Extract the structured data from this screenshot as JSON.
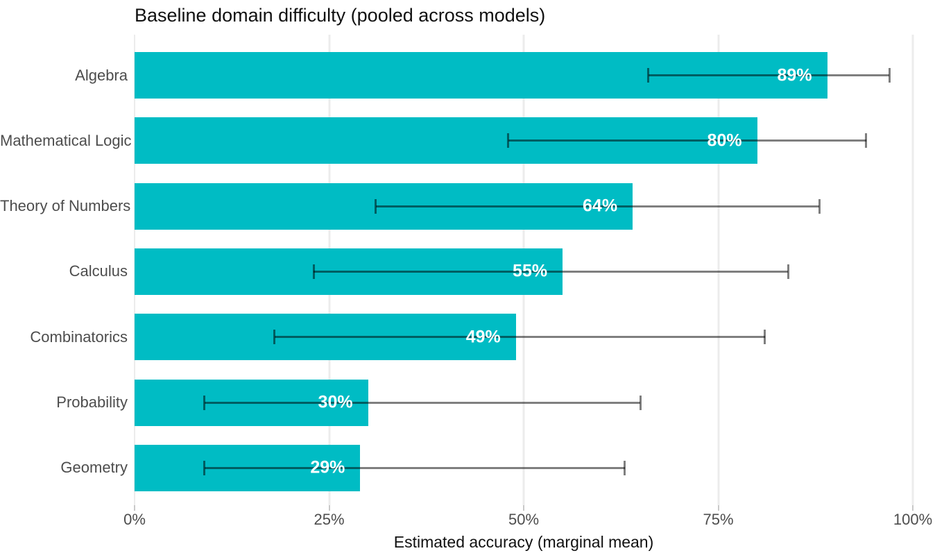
{
  "chart_data": {
    "type": "bar",
    "orientation": "horizontal",
    "title": "Baseline domain difficulty (pooled across models)",
    "xlabel": "Estimated accuracy (marginal mean)",
    "ylabel": "",
    "categories": [
      "Algebra",
      "Mathematical Logic",
      "Theory of Numbers",
      "Calculus",
      "Combinatorics",
      "Probability",
      "Geometry"
    ],
    "values": [
      89,
      80,
      64,
      55,
      49,
      30,
      29
    ],
    "value_labels": [
      "89%",
      "80%",
      "64%",
      "55%",
      "49%",
      "30%",
      "29%"
    ],
    "error_low": [
      66,
      48,
      31,
      23,
      18,
      9,
      9
    ],
    "error_high": [
      97,
      94,
      88,
      84,
      81,
      65,
      63
    ],
    "x_tick_values": [
      0,
      25,
      50,
      75,
      100
    ],
    "x_tick_labels": [
      "0%",
      "25%",
      "50%",
      "75%",
      "100%"
    ],
    "xlim": [
      0,
      100
    ],
    "grid": "vertical-major-only",
    "legend": "none",
    "colors": {
      "bar": "#00BCC4",
      "error_bar": "rgba(0,0,0,0.5)",
      "label_text": "#FFFFFF",
      "axis_text": "#4D4D4D",
      "title_text": "#111111",
      "gridline": "#ECECEC",
      "tick": "#C9C9C9",
      "background": "#FFFFFF"
    }
  }
}
